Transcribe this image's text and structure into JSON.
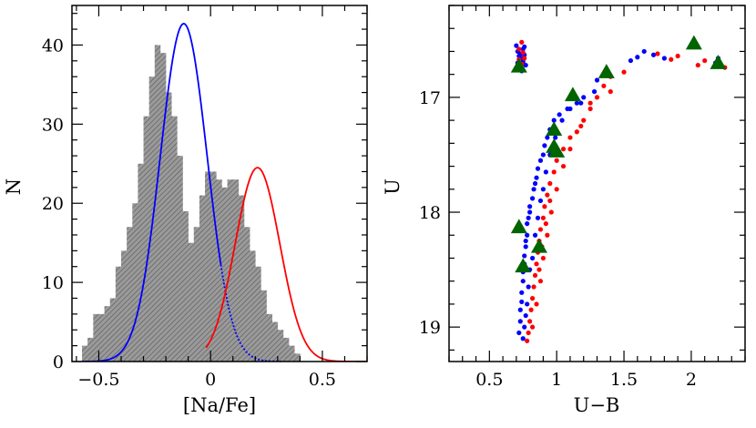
{
  "chart_data": [
    {
      "type": "histogram",
      "xlabel": "[Na/Fe]",
      "ylabel": "N",
      "xlim": [
        -0.62,
        0.7
      ],
      "ylim": [
        0,
        45
      ],
      "xticks": [
        -0.5,
        0,
        0.5
      ],
      "xtick_labels": [
        "−0.5",
        "0",
        "0.5"
      ],
      "yticks": [
        0,
        10,
        20,
        30,
        40
      ],
      "ytick_labels": [
        "0",
        "10",
        "20",
        "30",
        "40"
      ],
      "grid": false,
      "histogram": {
        "bin_width": 0.025,
        "bin_edges_start": -0.575,
        "counts": [
          2,
          3,
          6,
          6,
          7,
          8,
          12,
          14,
          17,
          20,
          25,
          31,
          36,
          40,
          39,
          34,
          31,
          26,
          19,
          15,
          17,
          21,
          24,
          24,
          23,
          22,
          23,
          23,
          21,
          17,
          14,
          12,
          9,
          6,
          5,
          4,
          3,
          2,
          1
        ],
        "color": "#808080",
        "fill": "hatched"
      },
      "series": [
        {
          "type": "gaussian",
          "color": "#0000ff",
          "mean": -0.12,
          "sigma": 0.105,
          "peak": 42.7,
          "x_range": [
            -0.57,
            0.32
          ],
          "dashed_from": 0.05
        },
        {
          "type": "gaussian",
          "color": "#ff0000",
          "mean": 0.21,
          "sigma": 0.1,
          "peak": 24.5,
          "x_range": [
            -0.02,
            0.7
          ]
        }
      ]
    },
    {
      "type": "scatter",
      "xlabel": "U−B",
      "ylabel": "U",
      "xlim": [
        0.2,
        2.4
      ],
      "ylim": [
        19.3,
        16.2
      ],
      "y_inverted": true,
      "xticks": [
        0.5,
        1,
        1.5,
        2
      ],
      "xtick_labels": [
        "0.5",
        "1",
        "1.5",
        "2"
      ],
      "yticks": [
        17,
        18,
        19
      ],
      "ytick_labels": [
        "17",
        "18",
        "19"
      ],
      "grid": false,
      "series": [
        {
          "marker": "dot",
          "color": "#0000ff",
          "points": [
            [
              0.7,
              16.55
            ],
            [
              0.71,
              16.6
            ],
            [
              0.73,
              16.62
            ],
            [
              0.75,
              16.58
            ],
            [
              0.76,
              16.63
            ],
            [
              0.74,
              16.66
            ],
            [
              0.71,
              16.7
            ],
            [
              0.77,
              16.72
            ],
            [
              0.73,
              16.74
            ],
            [
              0.75,
              16.69
            ],
            [
              0.72,
              16.64
            ],
            [
              0.76,
              16.56
            ],
            [
              0.74,
              16.77
            ],
            [
              1.6,
              16.65
            ],
            [
              1.65,
              16.6
            ],
            [
              1.72,
              16.63
            ],
            [
              1.8,
              16.66
            ],
            [
              1.55,
              16.68
            ],
            [
              2.18,
              16.7
            ],
            [
              2.2,
              16.66
            ],
            [
              1.3,
              16.85
            ],
            [
              1.28,
              16.95
            ],
            [
              1.2,
              17.0
            ],
            [
              1.15,
              17.05
            ],
            [
              1.08,
              17.1
            ],
            [
              1.02,
              17.15
            ],
            [
              0.98,
              17.2
            ],
            [
              0.95,
              17.28
            ],
            [
              0.93,
              17.35
            ],
            [
              0.91,
              17.42
            ],
            [
              0.9,
              17.5
            ],
            [
              0.88,
              17.55
            ],
            [
              0.86,
              17.62
            ],
            [
              0.85,
              17.7
            ],
            [
              0.84,
              17.75
            ],
            [
              0.83,
              17.8
            ],
            [
              0.82,
              17.88
            ],
            [
              0.8,
              17.95
            ],
            [
              0.8,
              18.0
            ],
            [
              0.79,
              18.05
            ],
            [
              0.78,
              18.1
            ],
            [
              0.78,
              18.2
            ],
            [
              0.77,
              18.25
            ],
            [
              0.77,
              18.3
            ],
            [
              0.76,
              18.38
            ],
            [
              0.76,
              18.45
            ],
            [
              0.75,
              18.52
            ],
            [
              0.75,
              18.6
            ],
            [
              0.74,
              18.7
            ],
            [
              0.74,
              18.78
            ],
            [
              0.73,
              18.85
            ],
            [
              0.73,
              18.95
            ],
            [
              0.72,
              19.05
            ],
            [
              0.75,
              19.1
            ],
            [
              0.76,
              19.0
            ],
            [
              0.77,
              18.9
            ],
            [
              0.78,
              18.8
            ],
            [
              0.79,
              18.65
            ],
            [
              0.8,
              18.5
            ],
            [
              0.82,
              18.4
            ],
            [
              0.84,
              18.2
            ],
            [
              0.86,
              18.05
            ],
            [
              0.88,
              17.9
            ],
            [
              0.9,
              17.8
            ],
            [
              0.92,
              17.65
            ],
            [
              0.95,
              17.5
            ],
            [
              0.99,
              17.35
            ],
            [
              1.04,
              17.2
            ],
            [
              1.1,
              17.1
            ],
            [
              1.18,
              17.05
            ]
          ]
        },
        {
          "marker": "dot",
          "color": "#ff0000",
          "points": [
            [
              0.72,
              16.58
            ],
            [
              0.74,
              16.52
            ],
            [
              0.75,
              16.61
            ],
            [
              0.72,
              16.67
            ],
            [
              0.74,
              16.71
            ],
            [
              0.73,
              16.75
            ],
            [
              0.76,
              16.66
            ],
            [
              1.75,
              16.62
            ],
            [
              1.85,
              16.67
            ],
            [
              1.9,
              16.64
            ],
            [
              2.05,
              16.72
            ],
            [
              2.1,
              16.68
            ],
            [
              2.25,
              16.74
            ],
            [
              1.5,
              16.78
            ],
            [
              1.4,
              16.82
            ],
            [
              1.35,
              16.9
            ],
            [
              1.3,
              17.0
            ],
            [
              1.25,
              17.1
            ],
            [
              1.2,
              17.2
            ],
            [
              1.15,
              17.3
            ],
            [
              1.1,
              17.35
            ],
            [
              1.05,
              17.45
            ],
            [
              1.0,
              17.55
            ],
            [
              0.98,
              17.65
            ],
            [
              0.95,
              17.75
            ],
            [
              0.93,
              17.85
            ],
            [
              0.91,
              17.95
            ],
            [
              0.9,
              18.05
            ],
            [
              0.88,
              18.15
            ],
            [
              0.87,
              18.25
            ],
            [
              0.86,
              18.35
            ],
            [
              0.85,
              18.45
            ],
            [
              0.84,
              18.55
            ],
            [
              0.83,
              18.65
            ],
            [
              0.82,
              18.75
            ],
            [
              0.81,
              18.85
            ],
            [
              0.8,
              18.95
            ],
            [
              0.79,
              19.05
            ],
            [
              0.78,
              19.12
            ],
            [
              0.82,
              19.0
            ],
            [
              0.85,
              18.8
            ],
            [
              0.88,
              18.6
            ],
            [
              0.9,
              18.4
            ],
            [
              0.93,
              18.2
            ],
            [
              0.96,
              18.0
            ],
            [
              1.0,
              17.8
            ],
            [
              1.05,
              17.6
            ],
            [
              1.1,
              17.45
            ],
            [
              1.18,
              17.25
            ],
            [
              1.25,
              17.05
            ],
            [
              1.4,
              16.95
            ],
            [
              0.87,
              18.5
            ],
            [
              0.89,
              18.3
            ],
            [
              0.92,
              18.1
            ],
            [
              0.95,
              17.9
            ]
          ]
        },
        {
          "marker": "triangle",
          "color": "#006400",
          "points": [
            [
              0.72,
              16.73
            ],
            [
              2.02,
              16.53
            ],
            [
              2.2,
              16.7
            ],
            [
              1.37,
              16.78
            ],
            [
              1.12,
              16.98
            ],
            [
              0.98,
              17.28
            ],
            [
              0.98,
              17.43
            ],
            [
              1.0,
              17.47
            ],
            [
              0.72,
              18.13
            ],
            [
              0.87,
              18.3
            ],
            [
              0.75,
              18.47
            ]
          ]
        }
      ]
    }
  ]
}
